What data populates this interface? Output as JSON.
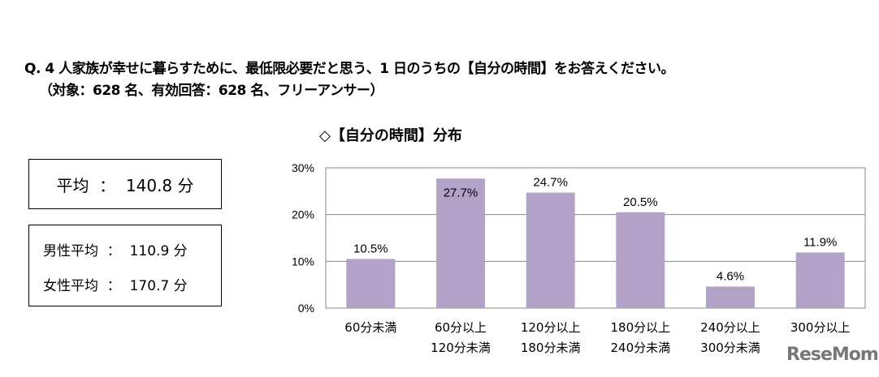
{
  "question": {
    "line1": "Q. 4 人家族が幸せに暮らすために、最低限必要だと思う、1 日のうちの【自分の時間】をお答えください。",
    "line2": "（対象：628 名、有効回答：628 名、フリーアンサー）"
  },
  "summary": {
    "overall": "平均  ：  140.8 分",
    "male": "男性平均  ：  110.9 分",
    "female": "女性平均  ：  170.7 分"
  },
  "logo": "ReseMom",
  "chart_data": {
    "type": "bar",
    "title": "◇【自分の時間】分布",
    "categories": [
      [
        "60分未満"
      ],
      [
        "60分以上",
        "120分未満"
      ],
      [
        "120分以上",
        "180分未満"
      ],
      [
        "180分以上",
        "240分未満"
      ],
      [
        "240分以上",
        "300分未満"
      ],
      [
        "300分以上"
      ]
    ],
    "values": [
      10.5,
      27.7,
      24.7,
      20.5,
      4.6,
      11.9
    ],
    "value_labels": [
      "10.5%",
      "27.7%",
      "24.7%",
      "20.5%",
      "4.6%",
      "11.9%"
    ],
    "yticks": [
      "0%",
      "10%",
      "20%",
      "30%"
    ],
    "ylim": [
      0,
      30
    ],
    "grid": true,
    "bar_color": "#B3A2C7"
  }
}
